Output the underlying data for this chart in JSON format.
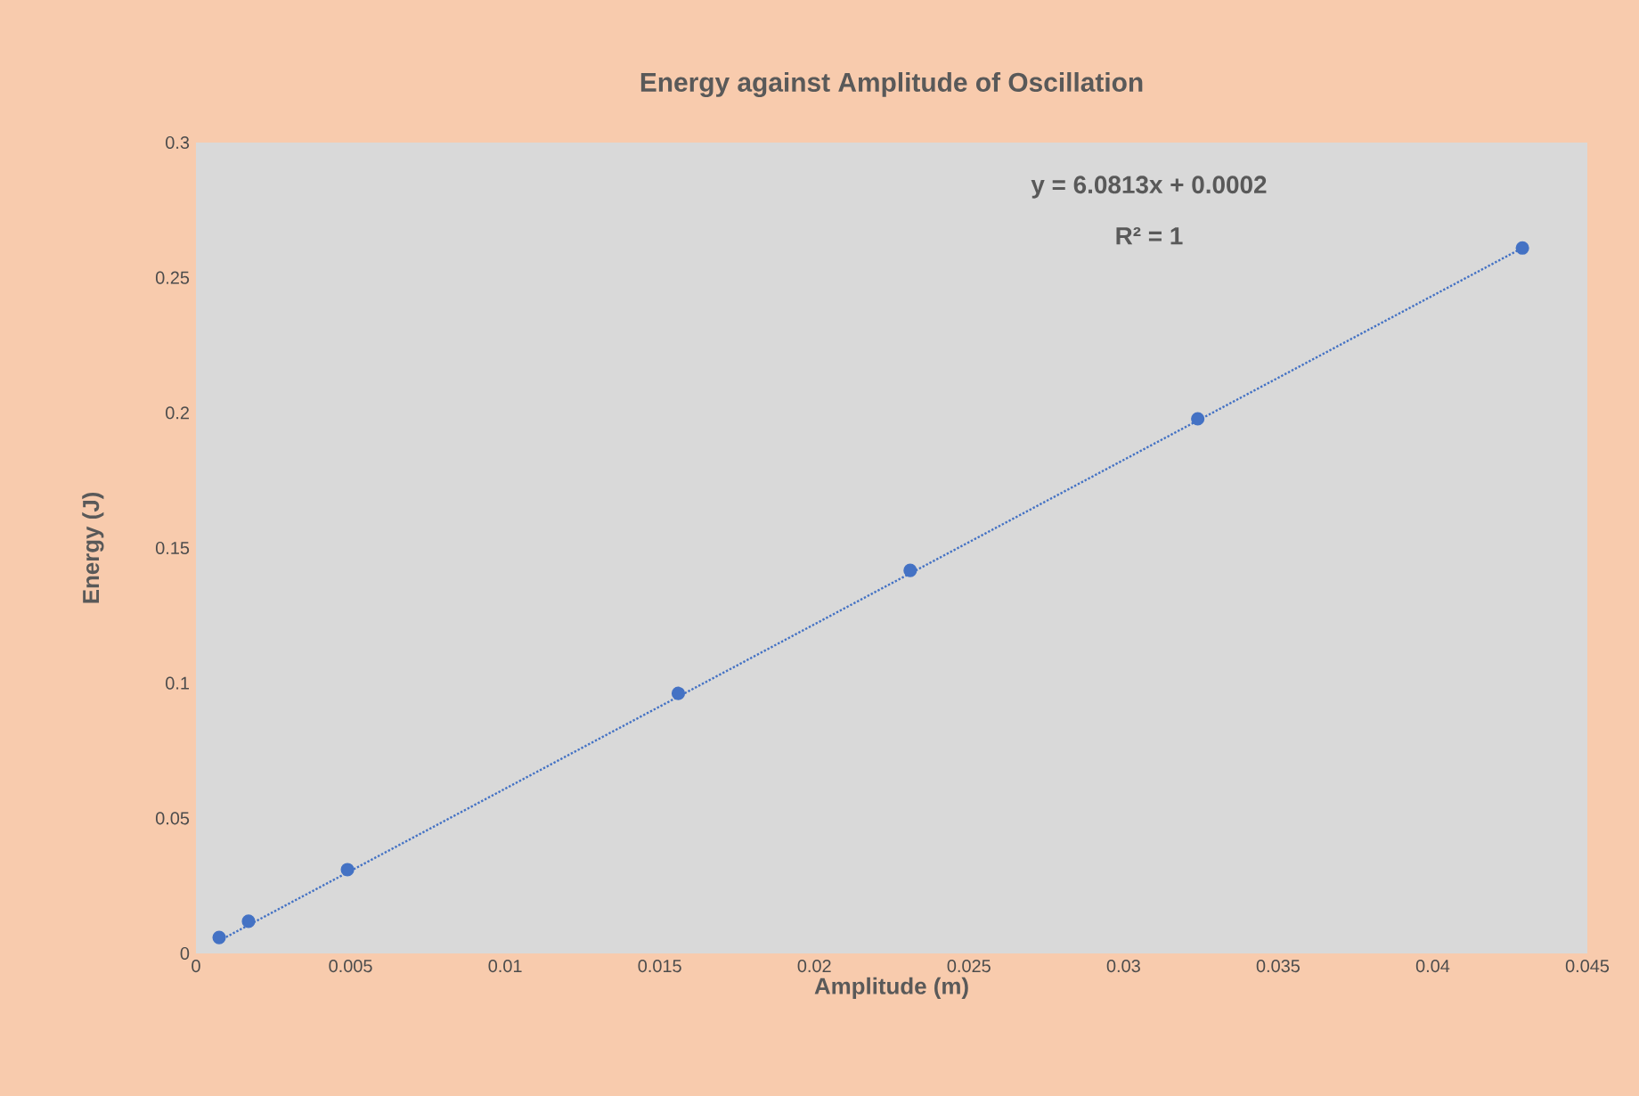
{
  "chart_data": {
    "type": "scatter",
    "title": "Energy against Amplitude of Oscillation",
    "xlabel": "Amplitude (m)",
    "ylabel": "Energy (J)",
    "x": [
      0.00075,
      0.0017,
      0.0049,
      0.0156,
      0.0231,
      0.0324,
      0.0429
    ],
    "series": [
      {
        "color": "#4472c4",
        "marker": "circle",
        "values": [
          0.0059,
          0.0119,
          0.031,
          0.0962,
          0.1417,
          0.1978,
          0.261
        ]
      },
      {
        "type": "line",
        "color": "#4472c4",
        "marker": "none",
        "line_style": "dotted",
        "x": [
          0.00075,
          0.0429
        ],
        "values": [
          0.0047,
          0.261
        ]
      }
    ],
    "xlim": [
      0,
      0.045
    ],
    "xticks": [
      0,
      0.005,
      0.01,
      0.015,
      0.02,
      0.025,
      0.03,
      0.035,
      0.04,
      0.045
    ],
    "ylim": [
      0,
      0.3
    ],
    "yticks": [
      0,
      0.05,
      0.1,
      0.15,
      0.2,
      0.25,
      0.3
    ],
    "annotations": [
      "y = 6.0813x + 0.0002",
      "R² = 1"
    ]
  }
}
